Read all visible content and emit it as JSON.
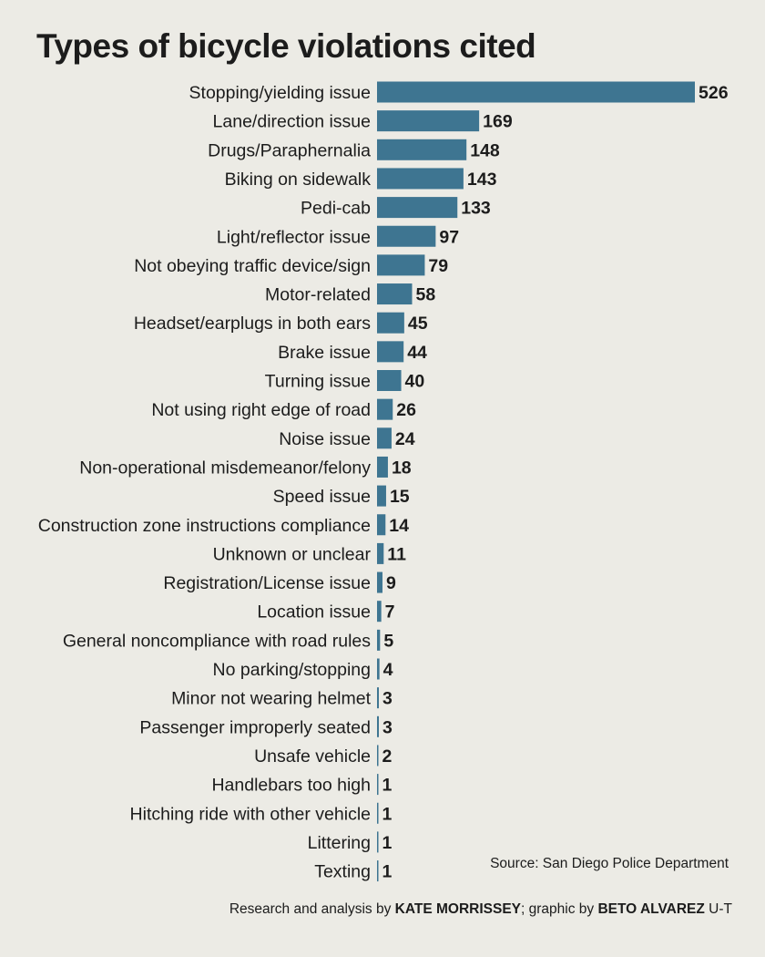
{
  "chart_data": {
    "type": "bar",
    "orientation": "horizontal",
    "title": "Types of bicycle violations cited",
    "categories": [
      "Stopping/yielding issue",
      "Lane/direction issue",
      "Drugs/Paraphernalia",
      "Biking on sidewalk",
      "Pedi-cab",
      "Light/reflector issue",
      "Not obeying traffic device/sign",
      "Motor-related",
      "Headset/earplugs in both ears",
      "Brake issue",
      "Turning issue",
      "Not using right edge of road",
      "Noise issue",
      "Non-operational misdemeanor/felony",
      "Speed issue",
      "Construction zone instructions compliance",
      "Unknown or unclear",
      "Registration/License issue",
      "Location issue",
      "General noncompliance with road rules",
      "No parking/stopping",
      "Minor not wearing helmet",
      "Passenger improperly seated",
      "Unsafe vehicle",
      "Handlebars too high",
      "Hitching ride with other vehicle",
      "Littering",
      "Texting"
    ],
    "values": [
      526,
      169,
      148,
      143,
      133,
      97,
      79,
      58,
      45,
      44,
      40,
      26,
      24,
      18,
      15,
      14,
      11,
      9,
      7,
      5,
      4,
      3,
      3,
      2,
      1,
      1,
      1,
      1
    ],
    "xlim": [
      0,
      526
    ],
    "grid": false,
    "bar_color": "#3e7591",
    "source": "Source: San Diego Police Department",
    "credit": {
      "prefix": "Research and analysis by ",
      "researcher": "KATE MORRISSEY",
      "middle": "; graphic by ",
      "designer": "BETO ALVAREZ",
      "suffix": " U-T"
    }
  }
}
